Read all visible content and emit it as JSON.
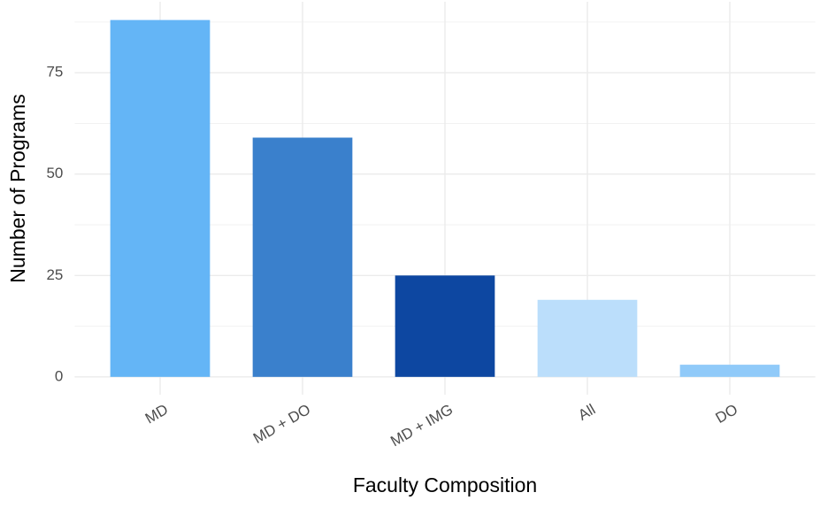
{
  "chart_data": {
    "type": "bar",
    "x_label": "Faculty Composition",
    "y_label": "Number of Programs",
    "categories": [
      "MD",
      "MD + DO",
      "MD + IMG",
      "All",
      "DO"
    ],
    "values": [
      88,
      59,
      25,
      19,
      3
    ],
    "colors": [
      "#64b5f6",
      "#3a80cc",
      "#0d47a1",
      "#bbdefb",
      "#90caf9"
    ],
    "ylim": [
      -4.4,
      92.5
    ],
    "yticks": [
      0,
      25,
      50,
      75
    ],
    "grid": true,
    "minor_grid": true
  }
}
